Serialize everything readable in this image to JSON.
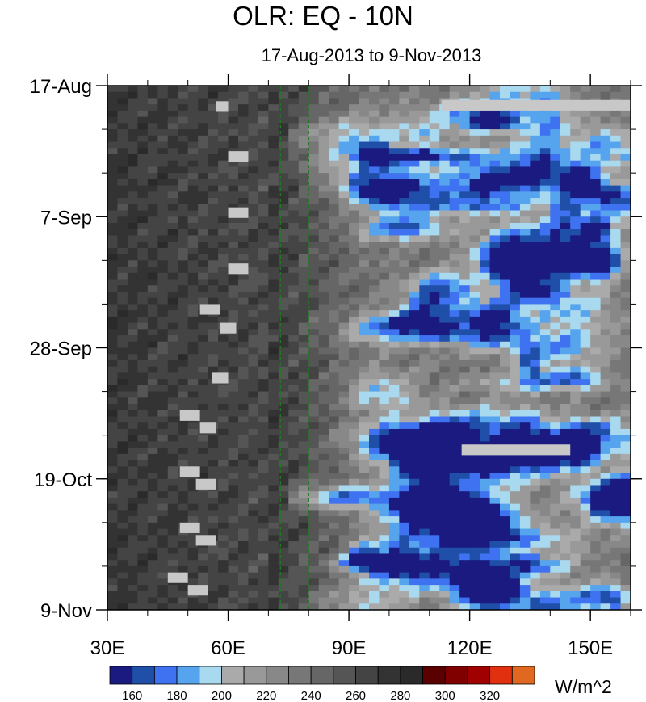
{
  "chart_data": {
    "type": "heatmap",
    "title": "OLR: EQ - 10N",
    "subtitle": "17-Aug-2013 to 9-Nov-2013",
    "x_ticks": [
      {
        "value": 30,
        "label": "30E"
      },
      {
        "value": 60,
        "label": "60E"
      },
      {
        "value": 90,
        "label": "90E"
      },
      {
        "value": 120,
        "label": "120E"
      },
      {
        "value": 150,
        "label": "150E"
      }
    ],
    "x_range": [
      30,
      160
    ],
    "y_ticks": [
      {
        "value": 0,
        "label": "17-Aug"
      },
      {
        "value": 21,
        "label": "7-Sep"
      },
      {
        "value": 42,
        "label": "28-Sep"
      },
      {
        "value": 63,
        "label": "19-Oct"
      },
      {
        "value": 84,
        "label": "9-Nov"
      }
    ],
    "y_range": [
      0,
      84
    ],
    "reference_lines_lon": [
      73,
      80
    ],
    "colorbar": {
      "units": "W/m^2",
      "levels": [
        160,
        170,
        180,
        190,
        200,
        210,
        220,
        230,
        240,
        250,
        260,
        270,
        280,
        290,
        300,
        310,
        320,
        330
      ],
      "labels": [
        "160",
        "180",
        "200",
        "220",
        "240",
        "260",
        "280",
        "300",
        "320"
      ],
      "colors": [
        "#1a1a80",
        "#1f4fa8",
        "#3f72f0",
        "#56a4ee",
        "#a9d9ee",
        "#aaaaaa",
        "#999999",
        "#888888",
        "#777777",
        "#666666",
        "#555555",
        "#444444",
        "#333333",
        "#2a2a2a",
        "#5a0000",
        "#800000",
        "#a00000",
        "#e03010",
        "#e06820"
      ]
    },
    "missing_color": "#c8c8c8"
  }
}
